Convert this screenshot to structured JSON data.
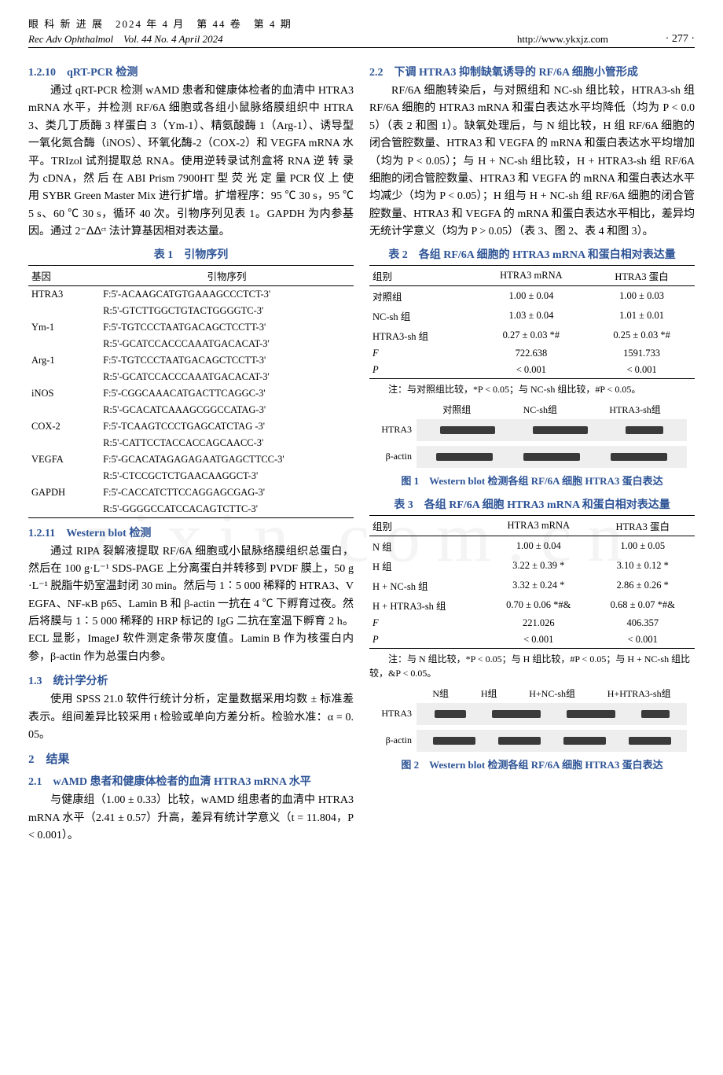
{
  "header": {
    "journal_cn": "眼 科 新 进 展",
    "issue_cn": "2024 年 4 月　第 44 卷　第 4 期",
    "journal_en": "Rec Adv Ophthalmol　Vol. 44 No. 4 April 2024",
    "url": "http://www.ykxjz.com",
    "page_no": "· 277 ·"
  },
  "left": {
    "h1210": "1.2.10　qRT-PCR 检测",
    "p1210": "通过 qRT-PCR 检测 wAMD 患者和健康体检者的血清中 HTRA3 mRNA 水平，并检测 RF/6A 细胞或各组小鼠脉络膜组织中 HTRA3、类几丁质酶 3 样蛋白 3（Ym-1）、精氨酸酶 1（Arg-1）、诱导型一氧化氮合酶（iNOS）、环氧化酶-2（COX-2）和 VEGFA mRNA 水平。TRIzol 试剂提取总 RNA。使用逆转录试剂盒将 RNA 逆 转 录 为 cDNA，然 后 在 ABI Prism 7900HT 型 荧 光 定 量 PCR 仪 上 使 用 SYBR Green Master Mix 进行扩增。扩增程序：95 ℃ 30 s，95 ℃ 5 s、60 ℃ 30 s，循环 40 次。引物序列见表 1。GAPDH 为内参基因。通过 2⁻ᐃᐃᶜᵗ 法计算基因相对表达量。",
    "t1_title": "表 1　引物序列",
    "t1_head": [
      "基因",
      "引物序列"
    ],
    "t1_rows": [
      [
        "HTRA3",
        "F:5'-ACAAGCATGTGAAAGCCCTCT-3'"
      ],
      [
        "",
        "R:5'-GTCTTGGCTGTACTGGGGTC-3'"
      ],
      [
        "Ym-1",
        "F:5'-TGTCCCTAATGACAGCTCCTT-3'"
      ],
      [
        "",
        "R:5'-GCATCCACCCAAATGACACAT-3'"
      ],
      [
        "Arg-1",
        "F:5'-TGTCCCTAATGACAGCTCCTT-3'"
      ],
      [
        "",
        "R:5'-GCATCCACCCAAATGACACAT-3'"
      ],
      [
        "iNOS",
        "F:5'-CGGCAAACATGACTTCAGGC-3'"
      ],
      [
        "",
        "R:5'-GCACATCAAAGCGGCCATAG-3'"
      ],
      [
        "COX-2",
        "F:5'-TCAAGTCCCTGAGCATCTAG -3'"
      ],
      [
        "",
        "R:5'-CATTCCTACCACCAGCAACC-3'"
      ],
      [
        "VEGFA",
        "F:5'-GCACATAGAGAGAATGAGCTTCC-3'"
      ],
      [
        "",
        "R:5'-CTCCGCTCTGAACAAGGCT-3'"
      ],
      [
        "GAPDH",
        "F:5'-CACCATCTTCCAGGAGCGAG-3'"
      ],
      [
        "",
        "R:5'-GGGGCCATCCACAGTCTTC-3'"
      ]
    ],
    "h1211": "1.2.11　Western blot 检测",
    "p1211": "通过 RIPA 裂解液提取 RF/6A 细胞或小鼠脉络膜组织总蛋白，然后在 100 g·L⁻¹ SDS-PAGE 上分离蛋白并转移到 PVDF 膜上，50 g·L⁻¹ 脱脂牛奶室温封闭 30 min。然后与 1∶5 000 稀释的 HTRA3、VEGFA、NF-κB p65、Lamin B 和 β-actin 一抗在 4 ℃ 下孵育过夜。然后将膜与 1∶5 000 稀释的 HRP 标记的 IgG 二抗在室温下孵育 2 h。ECL 显影，ImageJ 软件测定条带灰度值。Lamin B 作为核蛋白内参，β-actin 作为总蛋白内参。",
    "h13": "1.3　统计学分析",
    "p13": "使用 SPSS 21.0 软件行统计分析，定量数据采用均数 ± 标准差表示。组间差异比较采用 t 检验或单向方差分析。检验水准：α = 0.05。",
    "h2": "2　结果",
    "h21": "2.1　wAMD 患者和健康体检者的血清 HTRA3 mRNA 水平",
    "p21": "与健康组（1.00 ± 0.33）比较，wAMD 组患者的血清中 HTRA3 mRNA 水平（2.41 ± 0.57）升高，差异有统计学意义（t = 11.804，P < 0.001）。"
  },
  "right": {
    "h22": "2.2　下调 HTRA3 抑制缺氧诱导的 RF/6A 细胞小管形成",
    "p22": "RF/6A 细胞转染后，与对照组和 NC-sh 组比较，HTRA3-sh 组 RF/6A 细胞的 HTRA3 mRNA 和蛋白表达水平均降低（均为 P < 0.05）（表 2 和图 1）。缺氧处理后，与 N 组比较，H 组 RF/6A 细胞的闭合管腔数量、HTRA3 和 VEGFA 的 mRNA 和蛋白表达水平均增加（均为 P < 0.05）；与 H + NC-sh 组比较，H + HTRA3-sh 组 RF/6A 细胞的闭合管腔数量、HTRA3 和 VEGFA 的 mRNA 和蛋白表达水平均减少（均为 P < 0.05）；H 组与 H + NC-sh 组 RF/6A 细胞的闭合管腔数量、HTRA3 和 VEGFA 的 mRNA 和蛋白表达水平相比，差异均无统计学意义（均为 P > 0.05）（表 3、图 2、表 4 和图 3）。",
    "t2_title": "表 2　各组 RF/6A 细胞的 HTRA3 mRNA 和蛋白相对表达量",
    "t2_head": [
      "组别",
      "HTRA3 mRNA",
      "HTRA3 蛋白"
    ],
    "t2_rows": [
      [
        "对照组",
        "1.00 ± 0.04",
        "1.00 ± 0.03"
      ],
      [
        "NC-sh 组",
        "1.03 ± 0.04",
        "1.01 ± 0.01"
      ],
      [
        "HTRA3-sh 组",
        "0.27 ± 0.03 *#",
        "0.25 ± 0.03 *#"
      ],
      [
        "F",
        "722.638",
        "1591.733"
      ],
      [
        "P",
        "< 0.001",
        "< 0.001"
      ]
    ],
    "t2_note": "注：与对照组比较，*P < 0.05；与 NC-sh 组比较，#P < 0.05。",
    "fig1": {
      "groups": [
        "对照组",
        "NC-sh组",
        "HTRA3-sh组"
      ],
      "rows": [
        "HTRA3",
        "β-actin"
      ],
      "band_colors": {
        "dark": "#3a3a3a",
        "light": "#9a9a9a",
        "bg": "#eeeeee"
      },
      "band_widths": [
        70,
        70,
        48
      ],
      "actin_widths": [
        72,
        72,
        72
      ],
      "title": "图 1　Western blot 检测各组 RF/6A 细胞 HTRA3 蛋白表达"
    },
    "t3_title": "表 3　各组 RF/6A 细胞 HTRA3 mRNA 和蛋白相对表达量",
    "t3_head": [
      "组别",
      "HTRA3 mRNA",
      "HTRA3 蛋白"
    ],
    "t3_rows": [
      [
        "N 组",
        "1.00 ± 0.04",
        "1.00 ± 0.05"
      ],
      [
        "H 组",
        "3.22 ± 0.39 *",
        "3.10 ± 0.12 *"
      ],
      [
        "H + NC-sh 组",
        "3.32 ± 0.24 *",
        "2.86 ± 0.26 *"
      ],
      [
        "H + HTRA3-sh 组",
        "0.70 ± 0.06 *#&",
        "0.68 ± 0.07 *#&"
      ],
      [
        "F",
        "221.026",
        "406.357"
      ],
      [
        "P",
        "< 0.001",
        "< 0.001"
      ]
    ],
    "t3_note": "注：与 N 组比较，*P < 0.05；与 H 组比较，#P < 0.05；与 H + NC-sh 组比较，&P < 0.05。",
    "fig2": {
      "groups": [
        "N组",
        "H组",
        "H+NC-sh组",
        "H+HTRA3-sh组"
      ],
      "rows": [
        "HTRA3",
        "β-actin"
      ],
      "band_colors": {
        "dark": "#3a3a3a",
        "light": "#9a9a9a",
        "bg": "#eeeeee"
      },
      "band_widths": [
        40,
        62,
        62,
        36
      ],
      "actin_widths": [
        54,
        54,
        54,
        54
      ],
      "title": "图 2　Western blot 检测各组 RF/6A 细胞 HTRA3 蛋白表达"
    }
  },
  "watermark": "zixin.com.cn"
}
